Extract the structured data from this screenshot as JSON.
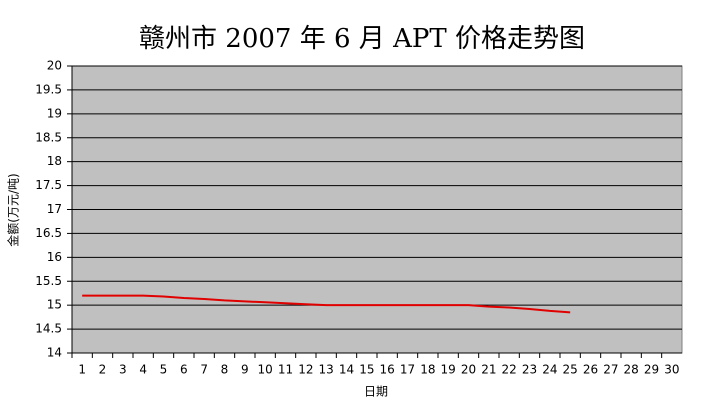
{
  "chart_data": {
    "type": "line",
    "title": "赣州市 2007 年 6 月 APT 价格走势图",
    "x_label": "日期",
    "y_label": "金额(万元/吨)",
    "categories": [
      "1",
      "2",
      "3",
      "4",
      "5",
      "6",
      "7",
      "8",
      "9",
      "10",
      "11",
      "12",
      "13",
      "14",
      "15",
      "16",
      "17",
      "18",
      "19",
      "20",
      "21",
      "22",
      "23",
      "24",
      "25",
      "26",
      "27",
      "28",
      "29",
      "30"
    ],
    "values": [
      15.2,
      15.2,
      15.2,
      15.2,
      15.18,
      15.15,
      15.13,
      15.1,
      15.08,
      15.06,
      15.04,
      15.02,
      15.0,
      15.0,
      15.0,
      15.0,
      15.0,
      15.0,
      15.0,
      15.0,
      14.97,
      14.95,
      14.92,
      14.88,
      14.85,
      null,
      null,
      null,
      null,
      null
    ],
    "color": "#e00000",
    "ylim": [
      14,
      20
    ],
    "yticks": [
      14,
      14.5,
      15,
      15.5,
      16,
      16.5,
      17,
      17.5,
      18,
      18.5,
      19,
      19.5,
      20
    ],
    "grid": true,
    "plot_background": "#c0c0c0"
  }
}
